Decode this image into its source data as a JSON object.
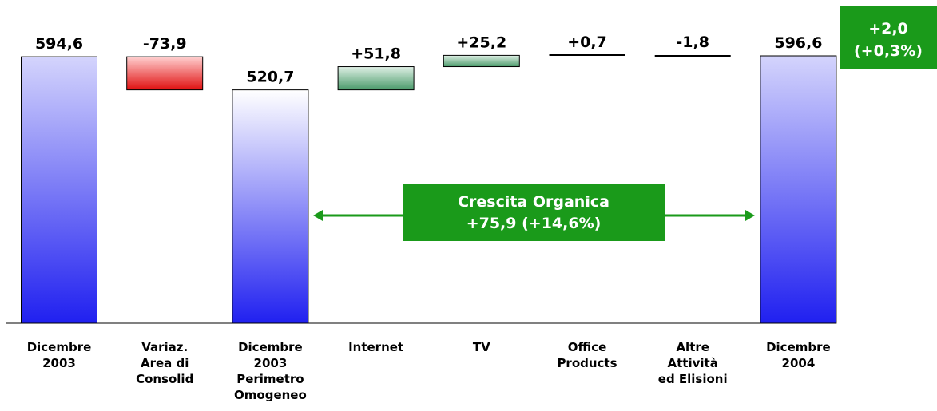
{
  "chart_data": {
    "type": "waterfall",
    "categories": [
      [
        "Dicembre",
        "2003"
      ],
      [
        "Variaz.",
        "Area di",
        "Consolid"
      ],
      [
        "Dicembre",
        "2003",
        "Perimetro",
        "Omogeneo"
      ],
      [
        "Internet"
      ],
      [
        "TV"
      ],
      [
        "Office",
        "Products"
      ],
      [
        "Altre",
        "Attività",
        "ed Elisioni"
      ],
      [
        "Dicembre",
        "2004"
      ]
    ],
    "values": [
      594.6,
      -73.9,
      520.7,
      51.8,
      25.2,
      0.7,
      -1.8,
      596.6
    ],
    "value_labels": [
      "594,6",
      "-73,9",
      "520,7",
      "+51,8",
      "+25,2",
      "+0,7",
      "-1,8",
      "596,6"
    ],
    "totals": [
      0,
      2,
      7
    ],
    "total_color": "#2020f0",
    "increase_color": "#4a9a6a",
    "decrease_color": "#e01010",
    "annotations": [
      {
        "lines": [
          "Crescita Organica",
          "+75,9 (+14,6%)"
        ],
        "color": "#1a9a1a"
      },
      {
        "lines": [
          "+2,0",
          "(+0,3%)"
        ],
        "color": "#1a9a1a"
      }
    ]
  }
}
